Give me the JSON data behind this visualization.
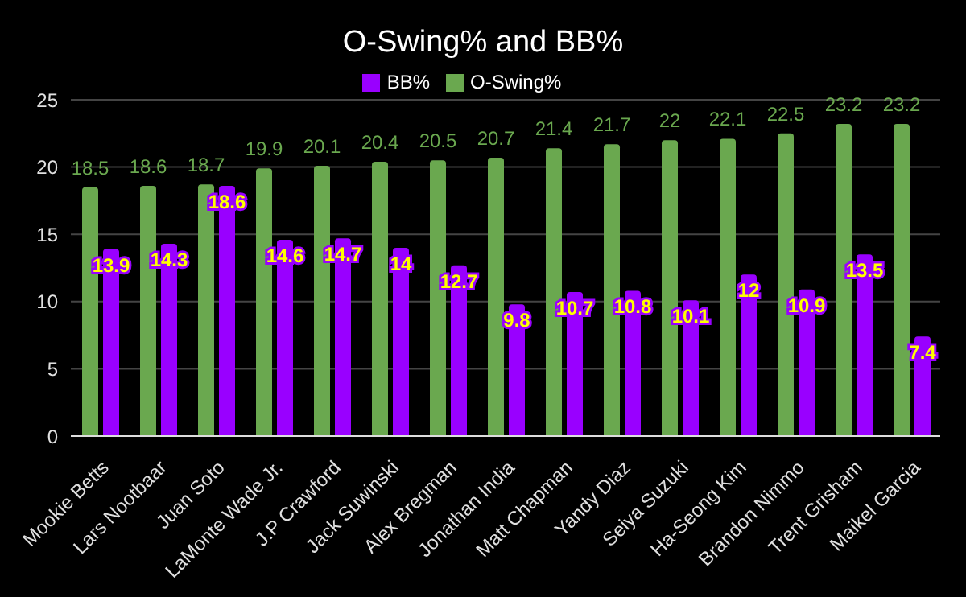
{
  "chart_data": {
    "type": "bar",
    "title": "O-Swing% and BB%",
    "categories": [
      "Mookie Betts",
      "Lars Nootbaar",
      "Juan Soto",
      "LaMonte Wade Jr.",
      "J.P Crawford",
      "Jack Suwinski",
      "Alex Bregman",
      "Jonathan India",
      "Matt Chapman",
      "Yandy Diaz",
      "Seiya Suzuki",
      "Ha-Seong Kim",
      "Brandon Nimmo",
      "Trent Grisham",
      "Maikel Garcia"
    ],
    "series": [
      {
        "name": "O-Swing%",
        "color": "#6aa84f",
        "values": [
          18.5,
          18.6,
          18.7,
          19.9,
          20.1,
          20.4,
          20.5,
          20.7,
          21.4,
          21.7,
          22,
          22.1,
          22.5,
          23.2,
          23.2
        ]
      },
      {
        "name": "BB%",
        "color": "#9900ff",
        "values": [
          13.9,
          14.3,
          18.6,
          14.6,
          14.7,
          14,
          12.7,
          9.8,
          10.7,
          10.8,
          10.1,
          12,
          10.9,
          13.5,
          7.4
        ]
      }
    ],
    "ylim": [
      0,
      25
    ],
    "yticks": [
      0,
      5,
      10,
      15,
      20,
      25
    ],
    "grid": "y",
    "legend": "top",
    "data_labels": true
  }
}
